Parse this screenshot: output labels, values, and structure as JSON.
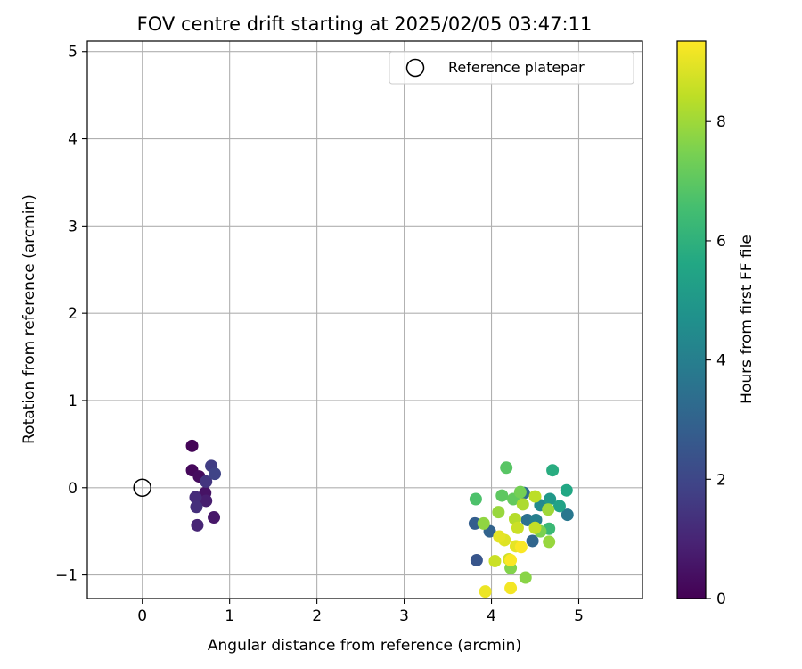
{
  "chart_data": {
    "type": "scatter",
    "title": "FOV centre drift starting at 2025/02/05 03:47:11",
    "xlabel": "Angular distance from reference (arcmin)",
    "ylabel": "Rotation from reference (arcmin)",
    "colorbar_label": "Hours from first FF file",
    "xlim": [
      -0.63,
      5.73
    ],
    "ylim": [
      -1.27,
      5.12
    ],
    "clim": [
      0,
      9.35
    ],
    "colormap": "viridis",
    "grid": true,
    "legend_position": "top-right",
    "xticks": [
      {
        "value": 0,
        "label": "0"
      },
      {
        "value": 1,
        "label": "1"
      },
      {
        "value": 2,
        "label": "2"
      },
      {
        "value": 3,
        "label": "3"
      },
      {
        "value": 4,
        "label": "4"
      },
      {
        "value": 5,
        "label": "5"
      }
    ],
    "yticks": [
      {
        "value": -1,
        "label": "−1"
      },
      {
        "value": 0,
        "label": "0"
      },
      {
        "value": 1,
        "label": "1"
      },
      {
        "value": 2,
        "label": "2"
      },
      {
        "value": 3,
        "label": "3"
      },
      {
        "value": 4,
        "label": "4"
      },
      {
        "value": 5,
        "label": "5"
      }
    ],
    "cticks": [
      {
        "value": 0,
        "label": "0"
      },
      {
        "value": 2,
        "label": "2"
      },
      {
        "value": 4,
        "label": "4"
      },
      {
        "value": 6,
        "label": "6"
      },
      {
        "value": 8,
        "label": "8"
      }
    ],
    "reference": {
      "name": "Reference platepar",
      "x": 0,
      "y": 0
    },
    "points": [
      {
        "x": 0.57,
        "y": 0.48,
        "c": 0.1
      },
      {
        "x": 0.57,
        "y": 0.2,
        "c": 0.2
      },
      {
        "x": 0.65,
        "y": 0.13,
        "c": 0.3
      },
      {
        "x": 0.72,
        "y": -0.06,
        "c": 0.5
      },
      {
        "x": 0.82,
        "y": -0.34,
        "c": 0.6
      },
      {
        "x": 0.73,
        "y": -0.15,
        "c": 0.8
      },
      {
        "x": 0.63,
        "y": -0.43,
        "c": 1.0
      },
      {
        "x": 0.61,
        "y": -0.11,
        "c": 1.2
      },
      {
        "x": 0.62,
        "y": -0.22,
        "c": 1.3
      },
      {
        "x": 0.73,
        "y": 0.07,
        "c": 1.5
      },
      {
        "x": 0.79,
        "y": 0.25,
        "c": 1.7
      },
      {
        "x": 0.83,
        "y": 0.16,
        "c": 1.9
      },
      {
        "x": 3.83,
        "y": -0.83,
        "c": 2.5
      },
      {
        "x": 3.81,
        "y": -0.41,
        "c": 2.8
      },
      {
        "x": 3.98,
        "y": -0.5,
        "c": 3.0
      },
      {
        "x": 4.47,
        "y": -0.61,
        "c": 3.1
      },
      {
        "x": 4.37,
        "y": -0.06,
        "c": 3.3
      },
      {
        "x": 4.41,
        "y": -0.37,
        "c": 3.5
      },
      {
        "x": 4.87,
        "y": -0.31,
        "c": 3.7
      },
      {
        "x": 4.51,
        "y": -0.37,
        "c": 4.0
      },
      {
        "x": 4.56,
        "y": -0.2,
        "c": 4.4
      },
      {
        "x": 4.67,
        "y": -0.13,
        "c": 5.0
      },
      {
        "x": 4.78,
        "y": -0.21,
        "c": 5.4
      },
      {
        "x": 4.86,
        "y": -0.03,
        "c": 5.6
      },
      {
        "x": 4.7,
        "y": 0.2,
        "c": 5.8
      },
      {
        "x": 4.66,
        "y": -0.47,
        "c": 6.3
      },
      {
        "x": 3.82,
        "y": -0.13,
        "c": 6.7
      },
      {
        "x": 4.17,
        "y": 0.23,
        "c": 6.9
      },
      {
        "x": 4.12,
        "y": -0.09,
        "c": 7.0
      },
      {
        "x": 4.25,
        "y": -0.13,
        "c": 7.1
      },
      {
        "x": 4.33,
        "y": -0.05,
        "c": 7.4
      },
      {
        "x": 4.56,
        "y": -0.5,
        "c": 7.5
      },
      {
        "x": 4.22,
        "y": -0.92,
        "c": 7.6
      },
      {
        "x": 4.39,
        "y": -1.03,
        "c": 7.7
      },
      {
        "x": 3.91,
        "y": -0.41,
        "c": 7.8
      },
      {
        "x": 4.08,
        "y": -0.28,
        "c": 7.9
      },
      {
        "x": 4.66,
        "y": -0.62,
        "c": 7.9
      },
      {
        "x": 4.65,
        "y": -0.25,
        "c": 8.0
      },
      {
        "x": 4.36,
        "y": -0.19,
        "c": 8.2
      },
      {
        "x": 4.27,
        "y": -0.36,
        "c": 8.3
      },
      {
        "x": 4.5,
        "y": -0.1,
        "c": 8.4
      },
      {
        "x": 4.5,
        "y": -0.46,
        "c": 8.5
      },
      {
        "x": 4.3,
        "y": -0.46,
        "c": 8.6
      },
      {
        "x": 4.04,
        "y": -0.84,
        "c": 8.6
      },
      {
        "x": 4.2,
        "y": -0.82,
        "c": 8.7
      },
      {
        "x": 4.15,
        "y": -0.6,
        "c": 8.9
      },
      {
        "x": 4.28,
        "y": -0.67,
        "c": 9.0
      },
      {
        "x": 4.09,
        "y": -0.56,
        "c": 9.0
      },
      {
        "x": 3.93,
        "y": -1.19,
        "c": 9.1
      },
      {
        "x": 4.22,
        "y": -1.15,
        "c": 9.2
      },
      {
        "x": 4.34,
        "y": -0.68,
        "c": 9.3
      },
      {
        "x": 4.22,
        "y": -0.83,
        "c": 9.3
      }
    ]
  }
}
